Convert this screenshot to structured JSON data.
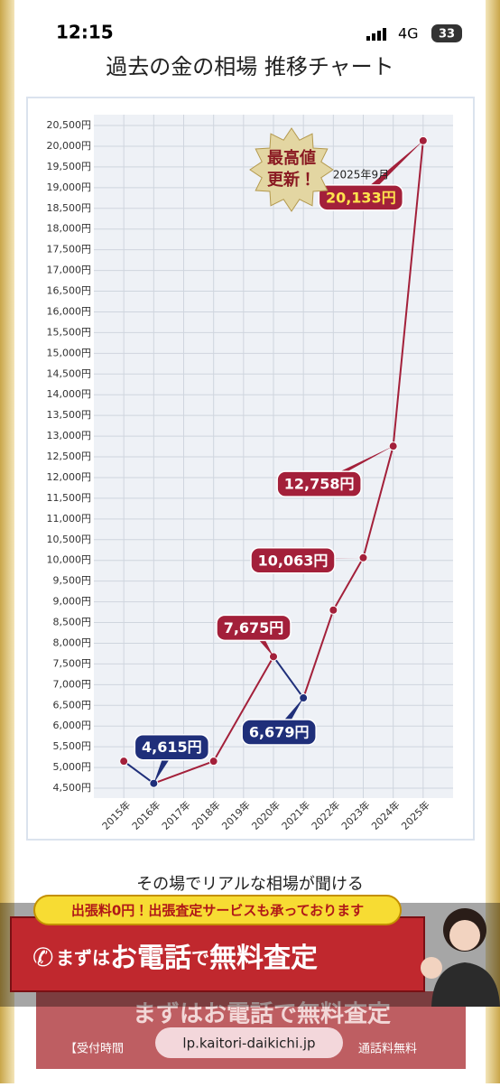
{
  "status_bar": {
    "time": "12:15",
    "network": "4G",
    "battery": "33"
  },
  "page_title": "過去の金の相場 推移チャート",
  "chart_data": {
    "type": "line",
    "x": [
      2015,
      2016,
      2018,
      2020,
      2021,
      2022,
      2023,
      2024,
      2025
    ],
    "values": [
      5150,
      4615,
      5150,
      7675,
      6679,
      8800,
      10063,
      12758,
      20133
    ],
    "point_colors": [
      "#a3203a",
      "#1f2f7a",
      "#a3203a",
      "#a3203a",
      "#1f2f7a",
      "#a3203a",
      "#a3203a",
      "#a3203a",
      "#a3203a"
    ],
    "value_labels": [
      null,
      "4,615円",
      null,
      "7,675円",
      "6,679円",
      null,
      "10,063円",
      "12,758円",
      "20,133円"
    ],
    "xlim": [
      2014,
      2026
    ],
    "xticks": [
      {
        "value": 2015,
        "label": "2015年"
      },
      {
        "value": 2016,
        "label": "2016年"
      },
      {
        "value": 2017,
        "label": "2017年"
      },
      {
        "value": 2018,
        "label": "2018年"
      },
      {
        "value": 2019,
        "label": "2019年"
      },
      {
        "value": 2020,
        "label": "2020年"
      },
      {
        "value": 2021,
        "label": "2021年"
      },
      {
        "value": 2022,
        "label": "2022年"
      },
      {
        "value": 2023,
        "label": "2023年"
      },
      {
        "value": 2024,
        "label": "2024年"
      },
      {
        "value": 2025,
        "label": "2025年"
      }
    ],
    "ylim": [
      4500,
      20500
    ],
    "yticks": [
      {
        "value": 4500,
        "label": "4,500円"
      },
      {
        "value": 5000,
        "label": "5,000円"
      },
      {
        "value": 5500,
        "label": "5,500円"
      },
      {
        "value": 6000,
        "label": "6,000円"
      },
      {
        "value": 6500,
        "label": "6,500円"
      },
      {
        "value": 7000,
        "label": "7,000円"
      },
      {
        "value": 7500,
        "label": "7,500円"
      },
      {
        "value": 8000,
        "label": "8,000円"
      },
      {
        "value": 8500,
        "label": "8,500円"
      },
      {
        "value": 9000,
        "label": "9,000円"
      },
      {
        "value": 9500,
        "label": "9,500円"
      },
      {
        "value": 10000,
        "label": "10,000円"
      },
      {
        "value": 10500,
        "label": "10,500円"
      },
      {
        "value": 11000,
        "label": "11,000円"
      },
      {
        "value": 11500,
        "label": "11,500円"
      },
      {
        "value": 12000,
        "label": "12,000円"
      },
      {
        "value": 12500,
        "label": "12,500円"
      },
      {
        "value": 13000,
        "label": "13,000円"
      },
      {
        "value": 13500,
        "label": "13,500円"
      },
      {
        "value": 14000,
        "label": "14,000円"
      },
      {
        "value": 14500,
        "label": "14,500円"
      },
      {
        "value": 15000,
        "label": "15,000円"
      },
      {
        "value": 15500,
        "label": "15,500円"
      },
      {
        "value": 16000,
        "label": "16,000円"
      },
      {
        "value": 16500,
        "label": "16,500円"
      },
      {
        "value": 17000,
        "label": "17,000円"
      },
      {
        "value": 17500,
        "label": "17,500円"
      },
      {
        "value": 18000,
        "label": "18,000円"
      },
      {
        "value": 18500,
        "label": "18,500円"
      },
      {
        "value": 19000,
        "label": "19,000円"
      },
      {
        "value": 19500,
        "label": "19,500円"
      },
      {
        "value": 20000,
        "label": "20,000円"
      },
      {
        "value": 20500,
        "label": "20,500円"
      }
    ],
    "grid": true,
    "badge": [
      "最高値",
      "更新！"
    ],
    "date_note": "2025年9月"
  },
  "promo": {
    "lead": "その場でリアルな相場が聞ける",
    "ribbon": "出張料0円！出張査定サービスも承っております",
    "button": [
      "まずは",
      "お電話",
      "で",
      "無料査定"
    ],
    "back_button": "まずはお電話で無料査定",
    "hours": "【受付時間",
    "toll_free": "通話料無料",
    "url": "lp.kaitori-daikichi.jp"
  }
}
